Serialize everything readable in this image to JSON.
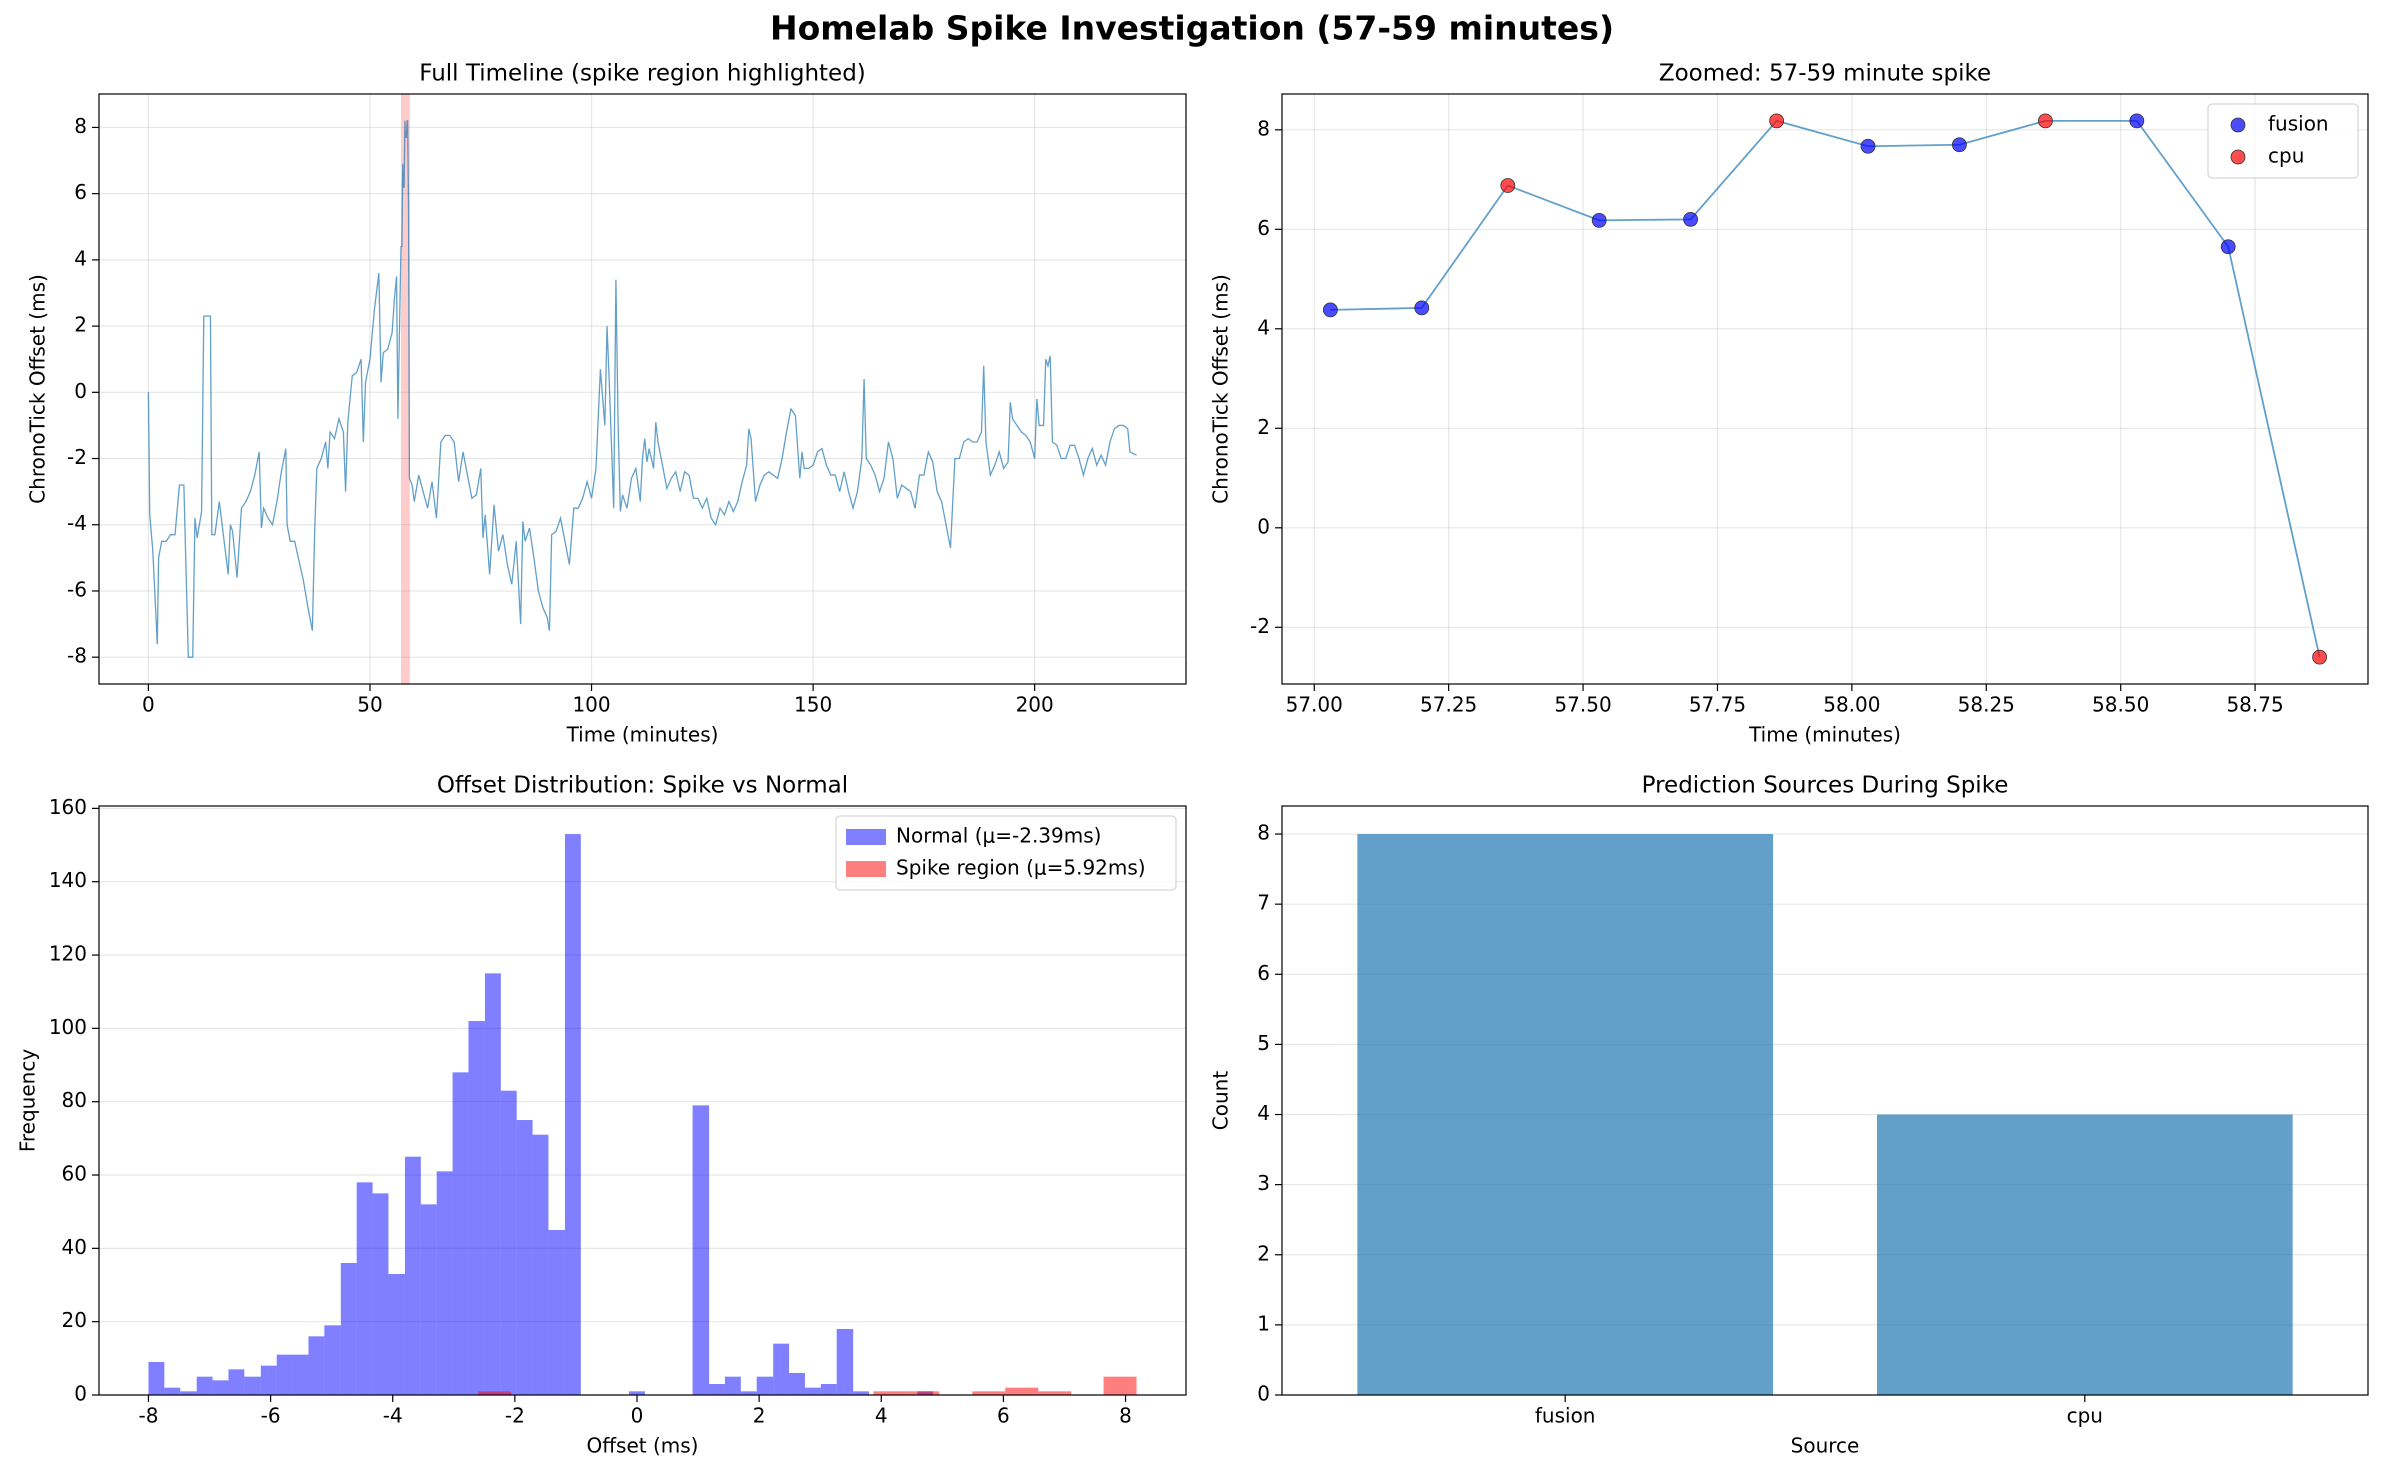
{
  "title": "Homelab Spike Investigation (57-59 minutes)",
  "chart_data": [
    {
      "type": "line",
      "title": "Full Timeline (spike region highlighted)",
      "xlabel": "Time (minutes)",
      "ylabel": "ChronoTick Offset (ms)",
      "color": "#1f77b4",
      "highlight": [
        57,
        59
      ],
      "highlight_color": "#ff0000",
      "grid": "both",
      "xlim": [
        -11.15,
        234.15
      ],
      "ylim": [
        -8.81,
        9.01
      ],
      "xticks": [
        0,
        50,
        100,
        150,
        200
      ],
      "yticks": [
        -8,
        -6,
        -4,
        -2,
        0,
        2,
        4,
        6,
        8
      ],
      "x": [
        0,
        0.3,
        1,
        2,
        2.3,
        3,
        4,
        5,
        6,
        7,
        8,
        9,
        10,
        10.5,
        11,
        12,
        12.5,
        14,
        14.3,
        15,
        16,
        17,
        18,
        18.5,
        19,
        20,
        21,
        22,
        23,
        24,
        25,
        25.5,
        26,
        27,
        28,
        29,
        30,
        31,
        31.3,
        32,
        33,
        34,
        35,
        36,
        37,
        37.5,
        38,
        39,
        40,
        40.5,
        41,
        42,
        43,
        44,
        44.5,
        45,
        46,
        47,
        48,
        48.5,
        49,
        50,
        51,
        52,
        52.5,
        53,
        54,
        55,
        55.5,
        56,
        56.3,
        57,
        57.2,
        57.4,
        57.5,
        57.7,
        57.9,
        58,
        58.2,
        58.4,
        58.5,
        58.7,
        58.9,
        59.5,
        60,
        61,
        62,
        63,
        64,
        65,
        66,
        67,
        68,
        69,
        70,
        71,
        72,
        73,
        74,
        75,
        75.5,
        76,
        77,
        78,
        79,
        80,
        81,
        82,
        83,
        84,
        84.5,
        85,
        86,
        87,
        88,
        89,
        90,
        90.5,
        91,
        92,
        93,
        94,
        95,
        96,
        97,
        98,
        99,
        100,
        101,
        102,
        103,
        103.5,
        104,
        105,
        105.5,
        106,
        106.5,
        107,
        108,
        109,
        110,
        111,
        111.5,
        112,
        112.5,
        113,
        114,
        114.5,
        115,
        116,
        117,
        118,
        119,
        120,
        121,
        122,
        123,
        124,
        125,
        126,
        127,
        128,
        129,
        130,
        131,
        132,
        133,
        134,
        135,
        135.5,
        136,
        137,
        138,
        139,
        140,
        141,
        142,
        143,
        144,
        145,
        146,
        147,
        147.5,
        148,
        149,
        150,
        151,
        152,
        153,
        154,
        155,
        156,
        157,
        158,
        159,
        160,
        161,
        161.5,
        162,
        163,
        164,
        165,
        166,
        167,
        168,
        169,
        170,
        171,
        172,
        173,
        174,
        175,
        176,
        177,
        178,
        179,
        180,
        181,
        182,
        183,
        184,
        185,
        186,
        187,
        188,
        188.5,
        189,
        190,
        191,
        192,
        193,
        194,
        194.5,
        195,
        196,
        197,
        198,
        199,
        200,
        200.5,
        201,
        202,
        202.5,
        203,
        203.5,
        204,
        205,
        206,
        207,
        208,
        209,
        210,
        211,
        212,
        213,
        214,
        215,
        216,
        217,
        218,
        219,
        220,
        221,
        221.5,
        223
      ],
      "values": [
        0,
        -3.7,
        -4.8,
        -7.6,
        -5,
        -4.5,
        -4.5,
        -4.3,
        -4.3,
        -2.8,
        -2.8,
        -8,
        -8,
        -3.8,
        -4.4,
        -3.6,
        2.3,
        2.3,
        -4.3,
        -4.3,
        -3.3,
        -4.4,
        -5.5,
        -4,
        -4.2,
        -5.6,
        -3.5,
        -3.3,
        -3,
        -2.5,
        -1.8,
        -4.1,
        -3.5,
        -3.8,
        -4,
        -3.3,
        -2.4,
        -1.7,
        -4,
        -4.5,
        -4.5,
        -5.1,
        -5.7,
        -6.5,
        -7.2,
        -4.3,
        -2.3,
        -2,
        -1.5,
        -2.3,
        -1.2,
        -1.4,
        -0.8,
        -1.2,
        -3,
        -0.9,
        0.5,
        0.6,
        1,
        -1.5,
        0.3,
        1,
        2.5,
        3.6,
        0.3,
        1.2,
        1.3,
        1.8,
        2.8,
        3.5,
        -0.8,
        4.4,
        4.4,
        6.9,
        6.2,
        6.2,
        8.2,
        7.7,
        7.7,
        8.2,
        8.2,
        5.6,
        -2.6,
        -2.8,
        -3.3,
        -2.5,
        -3,
        -3.5,
        -2.7,
        -3.8,
        -1.5,
        -1.3,
        -1.3,
        -1.5,
        -2.7,
        -1.8,
        -2.5,
        -3.2,
        -3.1,
        -2.3,
        -4.4,
        -3.7,
        -5.5,
        -3.4,
        -4.8,
        -4.3,
        -5.2,
        -5.8,
        -4.5,
        -7,
        -3.9,
        -4.5,
        -4.1,
        -5,
        -6,
        -6.5,
        -6.8,
        -7.2,
        -4.3,
        -4.2,
        -3.8,
        -4.5,
        -5.2,
        -3.5,
        -3.5,
        -3.2,
        -2.7,
        -3.2,
        -2.3,
        0.7,
        -1,
        2,
        0.3,
        -3.5,
        3.4,
        -1,
        -3.6,
        -3.1,
        -3.5,
        -2.6,
        -2.3,
        -3.3,
        -2,
        -1.4,
        -2.1,
        -1.7,
        -2.3,
        -0.9,
        -1.5,
        -2.2,
        -2.9,
        -2.6,
        -2.4,
        -3,
        -2.4,
        -2.5,
        -3.2,
        -3.2,
        -3.5,
        -3.2,
        -3.8,
        -4,
        -3.5,
        -3.7,
        -3.3,
        -3.6,
        -3.3,
        -2.7,
        -2.2,
        -1.1,
        -1.4,
        -3.3,
        -2.8,
        -2.5,
        -2.4,
        -2.5,
        -2.6,
        -2,
        -1.2,
        -0.5,
        -0.7,
        -2.6,
        -1.8,
        -2.3,
        -2.3,
        -2.2,
        -1.8,
        -1.7,
        -2.2,
        -2.5,
        -2.5,
        -3,
        -2.4,
        -3,
        -3.5,
        -3,
        -2,
        0.4,
        -2,
        -2.2,
        -2.5,
        -3,
        -2.6,
        -1.5,
        -2,
        -3.2,
        -2.8,
        -2.9,
        -3,
        -3.5,
        -2.5,
        -2.5,
        -1.8,
        -2.1,
        -3,
        -3.3,
        -4,
        -4.7,
        -2,
        -2,
        -1.5,
        -1.4,
        -1.5,
        -1.5,
        -1.2,
        0.8,
        -1.5,
        -2.5,
        -2.2,
        -1.8,
        -2.3,
        -2.1,
        -0.3,
        -0.8,
        -1,
        -1.2,
        -1.3,
        -1.5,
        -2,
        -0.2,
        -1,
        -1,
        1,
        0.8,
        1.1,
        -1.5,
        -1.6,
        -2,
        -2,
        -1.6,
        -1.6,
        -2,
        -2.5,
        -2,
        -1.7,
        -2.2,
        -1.9,
        -2.2,
        -1.5,
        -1.1,
        -1,
        -1,
        -1.1,
        -1.8,
        -1.9
      ]
    },
    {
      "type": "scatter",
      "title": "Zoomed: 57-59 minute spike",
      "xlabel": "Time (minutes)",
      "ylabel": "ChronoTick Offset (ms)",
      "line_color": "#1f77b4",
      "grid": "both",
      "legend": "upper right",
      "xlim": [
        56.94,
        58.96
      ],
      "ylim": [
        -3.14,
        8.72
      ],
      "xticks": [
        {
          "value": 57,
          "label": "57.00"
        },
        {
          "value": 57.25,
          "label": "57.25"
        },
        {
          "value": 57.5,
          "label": "57.50"
        },
        {
          "value": 57.75,
          "label": "57.75"
        },
        {
          "value": 58,
          "label": "58.00"
        },
        {
          "value": 58.25,
          "label": "58.25"
        },
        {
          "value": 58.5,
          "label": "58.50"
        },
        {
          "value": 58.75,
          "label": "58.75"
        }
      ],
      "yticks": [
        -2,
        0,
        2,
        4,
        6,
        8
      ],
      "x": [
        57.03,
        57.2,
        57.36,
        57.53,
        57.7,
        57.86,
        58.03,
        58.2,
        58.36,
        58.53,
        58.7,
        58.87
      ],
      "values": [
        4.38,
        4.42,
        6.88,
        6.18,
        6.2,
        8.18,
        7.67,
        7.7,
        8.18,
        8.18,
        5.65,
        -2.6
      ],
      "sources": [
        "fusion",
        "fusion",
        "cpu",
        "fusion",
        "fusion",
        "cpu",
        "fusion",
        "fusion",
        "cpu",
        "fusion",
        "fusion",
        "cpu"
      ],
      "series": [
        {
          "name": "fusion",
          "color": "#0000ff"
        },
        {
          "name": "cpu",
          "color": "#ff0000"
        }
      ]
    },
    {
      "type": "histogram",
      "title": "Offset Distribution: Spike vs Normal",
      "xlabel": "Offset (ms)",
      "ylabel": "Frequency",
      "grid": "y",
      "legend": "upper right",
      "xlim": [
        -8.81,
        8.99
      ],
      "ylim": [
        0,
        160.65
      ],
      "xticks": [
        -8,
        -6,
        -4,
        -2,
        0,
        2,
        4,
        6,
        8
      ],
      "yticks": [
        0,
        20,
        40,
        60,
        80,
        100,
        120,
        140,
        160
      ],
      "series": [
        {
          "name": "Normal (μ=-2.39ms)",
          "color": "#0000ff",
          "bins": [
            -8,
            -7.74,
            -7.48,
            -7.21,
            -6.95,
            -6.69,
            -6.43,
            -6.16,
            -5.9,
            -5.64,
            -5.38,
            -5.12,
            -4.85,
            -4.59,
            -4.33,
            -4.07,
            -3.8,
            -3.54,
            -3.28,
            -3.02,
            -2.76,
            -2.49,
            -2.23,
            -1.97,
            -1.71,
            -1.45,
            -1.18,
            -0.92,
            -0.66,
            -0.4,
            -0.13,
            0.13,
            0.39,
            0.65,
            0.91,
            1.18,
            1.44,
            1.7,
            1.96,
            2.23,
            2.49,
            2.75,
            3.01,
            3.27,
            3.54,
            3.8,
            4.06,
            4.32,
            4.59,
            4.85,
            5.11
          ],
          "values": [
            9,
            2,
            1,
            5,
            4,
            7,
            5,
            8,
            11,
            11,
            16,
            19,
            36,
            58,
            55,
            33,
            65,
            52,
            61,
            88,
            102,
            115,
            83,
            75,
            71,
            45,
            153,
            0,
            0,
            0,
            1,
            0,
            0,
            0,
            79,
            3,
            5,
            1,
            5,
            14,
            6,
            2,
            3,
            18,
            1,
            0,
            0,
            0,
            1,
            0
          ]
        },
        {
          "name": "Spike region (μ=5.92ms)",
          "color": "#ff0000",
          "bins": [
            -2.6,
            -2.06,
            -1.52,
            -0.99,
            -0.45,
            0.1,
            0.63,
            1.17,
            1.71,
            2.25,
            2.79,
            3.33,
            3.87,
            4.41,
            4.95,
            5.49,
            6.03,
            6.57,
            7.11,
            7.64,
            8.18
          ],
          "values": [
            1,
            0,
            0,
            0,
            0,
            0,
            0,
            0,
            0,
            0,
            0,
            0,
            1,
            1,
            0,
            1,
            2,
            1,
            0,
            5
          ]
        }
      ]
    },
    {
      "type": "bar",
      "title": "Prediction Sources During Spike",
      "xlabel": "Source",
      "ylabel": "Count",
      "grid": "y",
      "color": "#1f77b4",
      "ylim": [
        0,
        8.4
      ],
      "yticks": [
        0,
        1,
        2,
        3,
        4,
        5,
        6,
        7,
        8
      ],
      "categories": [
        "fusion",
        "cpu"
      ],
      "values": [
        8,
        4
      ]
    }
  ]
}
